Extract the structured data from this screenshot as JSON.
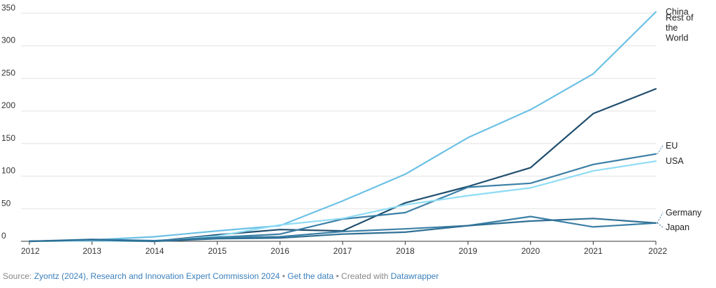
{
  "chart_data": {
    "type": "line",
    "title": "",
    "xlabel": "",
    "ylabel": "",
    "x": [
      2012,
      2013,
      2014,
      2015,
      2016,
      2017,
      2018,
      2019,
      2020,
      2021,
      2022
    ],
    "x_tick_labels": [
      "2012",
      "2013",
      "2014",
      "2015",
      "2016",
      "2017",
      "2018",
      "2019",
      "2020",
      "2021",
      "2022"
    ],
    "ylim": [
      0,
      350
    ],
    "y_ticks": [
      0,
      50,
      100,
      150,
      200,
      250,
      300,
      350
    ],
    "y_tick_labels": [
      "0",
      "50",
      "100",
      "150",
      "200",
      "250",
      "300",
      "350"
    ],
    "grid": true,
    "series": [
      {
        "name": "China",
        "label_lines": [
          "China"
        ],
        "color": "#6cc0e5",
        "values": [
          0,
          2,
          7,
          16,
          24,
          62,
          103,
          159,
          202,
          257,
          352
        ]
      },
      {
        "name": "Rest of the World",
        "label_lines": [
          "Rest of",
          "the",
          "World"
        ],
        "color": "#1f4e6e",
        "values": [
          0,
          2,
          0,
          10,
          18,
          16,
          59,
          84,
          113,
          196,
          234
        ]
      },
      {
        "name": "EU",
        "label_lines": [
          "EU"
        ],
        "color": "#3b7fa6",
        "values": [
          0,
          1,
          0,
          6,
          11,
          34,
          44,
          83,
          89,
          118,
          134
        ]
      },
      {
        "name": "USA",
        "label_lines": [
          "USA"
        ],
        "color": "#8fdcf5",
        "values": [
          0,
          1,
          0,
          8,
          25,
          35,
          56,
          70,
          82,
          108,
          123
        ]
      },
      {
        "name": "Germany",
        "label_lines": [
          "Germany"
        ],
        "color": "#3b7fa6",
        "values": [
          0,
          3,
          1,
          6,
          7,
          15,
          19,
          24,
          38,
          22,
          28
        ]
      },
      {
        "name": "Japan",
        "label_lines": [
          "Japan"
        ],
        "color": "#2f6f94",
        "values": [
          0,
          2,
          0,
          4,
          5,
          11,
          14,
          24,
          31,
          35,
          28
        ]
      }
    ]
  },
  "footer": {
    "source_prefix": "Source:",
    "source_text": "Zyontz (2024), Research and Innovation Expert Commission 2024",
    "separator": "•",
    "get_data": "Get the data",
    "created_with": "Created with",
    "tool": "Datawrapper"
  }
}
